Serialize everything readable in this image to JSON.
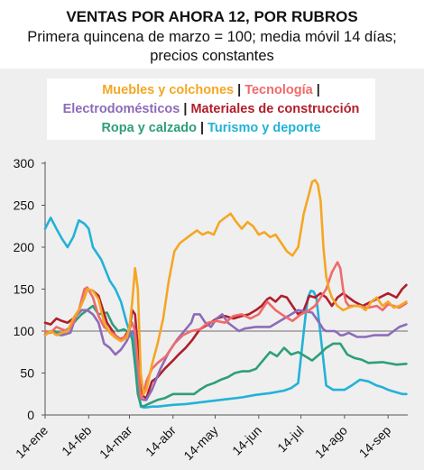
{
  "title": "VENTAS POR AHORA 12, POR RUBROS",
  "subtitle_line1": "Primera quincena de marzo = 100; media móvil 14 días;",
  "subtitle_line2": "precios constantes",
  "legend": {
    "separator": " | ",
    "entries": [
      {
        "name": "Muebles y colchones",
        "color": "#F5A623"
      },
      {
        "name": "Tecnología",
        "color": "#F06A6A"
      },
      {
        "name": "Electrodomésticos",
        "color": "#8E6BB8"
      },
      {
        "name": "Materiales de construcción",
        "color": "#B01E2A"
      },
      {
        "name": "Ropa y calzado",
        "color": "#2E9E7A"
      },
      {
        "name": "Turismo y deporte",
        "color": "#22B2D8"
      }
    ]
  },
  "chart_data": {
    "type": "line",
    "title": "VENTAS POR AHORA 12, POR RUBROS",
    "ylim": [
      0,
      300
    ],
    "yticks": [
      0,
      50,
      100,
      150,
      200,
      250,
      300
    ],
    "reference_line": 100,
    "x_range_days": [
      0,
      258
    ],
    "x_ticks": [
      {
        "day": 0,
        "label": "14-ene"
      },
      {
        "day": 31,
        "label": "14-feb"
      },
      {
        "day": 60,
        "label": "14-mar"
      },
      {
        "day": 91,
        "label": "14-abr"
      },
      {
        "day": 121,
        "label": "14-may"
      },
      {
        "day": 152,
        "label": "14-jun"
      },
      {
        "day": 182,
        "label": "14-jul"
      },
      {
        "day": 213,
        "label": "14-ago"
      },
      {
        "day": 244,
        "label": "14-sep"
      }
    ],
    "series": [
      {
        "name": "Turismo y deporte",
        "color": "#22B2D8",
        "x": [
          0,
          4,
          8,
          12,
          16,
          20,
          24,
          28,
          31,
          34,
          40,
          46,
          50,
          54,
          58,
          60,
          62,
          64,
          66,
          68,
          70,
          72,
          76,
          80,
          85,
          91,
          100,
          110,
          120,
          130,
          140,
          150,
          160,
          170,
          175,
          180,
          185,
          187,
          189,
          191,
          193,
          196,
          200,
          205,
          210,
          213,
          218,
          224,
          230,
          236,
          240,
          244,
          248,
          254,
          257
        ],
        "y": [
          222,
          235,
          222,
          210,
          200,
          212,
          232,
          228,
          222,
          200,
          185,
          160,
          150,
          135,
          110,
          100,
          98,
          85,
          45,
          10,
          9,
          9,
          10,
          10,
          11,
          12,
          13,
          15,
          17,
          19,
          21,
          24,
          26,
          29,
          32,
          38,
          115,
          140,
          148,
          147,
          140,
          95,
          35,
          30,
          30,
          30,
          35,
          42,
          40,
          35,
          33,
          30,
          28,
          25,
          25
        ]
      },
      {
        "name": "Ropa y calzado",
        "color": "#2E9E7A",
        "x": [
          0,
          6,
          12,
          18,
          22,
          26,
          30,
          34,
          38,
          44,
          48,
          52,
          56,
          58,
          60,
          62,
          64,
          66,
          68,
          70,
          72,
          76,
          80,
          85,
          91,
          95,
          100,
          106,
          110,
          115,
          120,
          125,
          130,
          135,
          140,
          145,
          150,
          155,
          160,
          165,
          170,
          175,
          180,
          185,
          190,
          195,
          200,
          205,
          210,
          215,
          220,
          225,
          230,
          240,
          250,
          257
        ],
        "y": [
          96,
          100,
          97,
          105,
          113,
          120,
          125,
          130,
          120,
          122,
          108,
          100,
          102,
          100,
          100,
          90,
          60,
          25,
          12,
          10,
          12,
          15,
          18,
          20,
          25,
          25,
          25,
          25,
          30,
          35,
          38,
          42,
          45,
          50,
          52,
          52,
          55,
          65,
          75,
          70,
          80,
          72,
          75,
          70,
          65,
          72,
          80,
          85,
          85,
          72,
          68,
          66,
          62,
          63,
          60,
          61
        ]
      },
      {
        "name": "Materiales de construcción",
        "color": "#B01E2A",
        "x": [
          0,
          4,
          8,
          12,
          16,
          20,
          24,
          28,
          30,
          34,
          38,
          44,
          48,
          52,
          56,
          60,
          62,
          64,
          66,
          68,
          70,
          72,
          76,
          80,
          85,
          91,
          95,
          100,
          105,
          110,
          116,
          122,
          128,
          134,
          140,
          145,
          150,
          154,
          158,
          160,
          164,
          168,
          172,
          176,
          180,
          184,
          188,
          192,
          196,
          200,
          204,
          208,
          212,
          216,
          220,
          226,
          232,
          238,
          244,
          250,
          254,
          257
        ],
        "y": [
          110,
          108,
          115,
          112,
          110,
          115,
          125,
          140,
          150,
          148,
          142,
          110,
          100,
          90,
          92,
          102,
          125,
          120,
          80,
          35,
          22,
          20,
          40,
          45,
          55,
          65,
          72,
          80,
          90,
          102,
          108,
          115,
          118,
          115,
          118,
          120,
          125,
          130,
          138,
          140,
          135,
          142,
          140,
          130,
          120,
          125,
          142,
          140,
          145,
          140,
          130,
          140,
          145,
          140,
          135,
          130,
          135,
          140,
          145,
          140,
          150,
          155
        ]
      },
      {
        "name": "Electrodomésticos",
        "color": "#8E6BB8",
        "x": [
          0,
          4,
          8,
          12,
          18,
          22,
          26,
          30,
          34,
          38,
          42,
          46,
          50,
          54,
          58,
          60,
          62,
          64,
          66,
          68,
          70,
          72,
          76,
          82,
          88,
          94,
          100,
          104,
          106,
          110,
          114,
          118,
          122,
          126,
          130,
          134,
          138,
          142,
          146,
          150,
          160,
          170,
          180,
          190,
          195,
          198,
          200,
          202,
          204,
          206,
          208,
          210,
          212,
          216,
          222,
          228,
          234,
          240,
          244,
          248,
          252,
          257
        ],
        "y": [
          95,
          100,
          96,
          95,
          98,
          118,
          125,
          125,
          120,
          110,
          85,
          80,
          72,
          78,
          88,
          95,
          100,
          95,
          60,
          20,
          18,
          18,
          30,
          55,
          75,
          90,
          102,
          110,
          120,
          120,
          110,
          105,
          115,
          120,
          110,
          105,
          100,
          103,
          104,
          105,
          105,
          115,
          125,
          122,
          110,
          102,
          100,
          100,
          100,
          100,
          98,
          95,
          95,
          98,
          93,
          93,
          95,
          95,
          95,
          100,
          105,
          108
        ]
      },
      {
        "name": "Tecnología",
        "color": "#F06A6A",
        "x": [
          0,
          4,
          8,
          12,
          16,
          20,
          24,
          28,
          30,
          34,
          38,
          42,
          46,
          50,
          54,
          58,
          60,
          62,
          64,
          66,
          68,
          70,
          72,
          76,
          80,
          86,
          92,
          98,
          104,
          110,
          116,
          122,
          128,
          134,
          140,
          146,
          152,
          158,
          164,
          170,
          176,
          182,
          188,
          192,
          196,
          200,
          204,
          208,
          210,
          212,
          214,
          216,
          222,
          230,
          236,
          240,
          244,
          248,
          252,
          257
        ],
        "y": [
          100,
          98,
          105,
          102,
          100,
          110,
          125,
          150,
          152,
          140,
          118,
          105,
          100,
          95,
          90,
          95,
          102,
          110,
          100,
          60,
          20,
          25,
          40,
          55,
          62,
          70,
          85,
          95,
          100,
          102,
          110,
          112,
          110,
          118,
          120,
          115,
          120,
          135,
          125,
          118,
          112,
          120,
          125,
          130,
          140,
          150,
          170,
          182,
          175,
          150,
          135,
          130,
          130,
          128,
          130,
          125,
          132,
          130,
          128,
          133
        ]
      },
      {
        "name": "Muebles y colchones",
        "color": "#F5A623",
        "x": [
          0,
          4,
          8,
          12,
          16,
          20,
          24,
          28,
          30,
          34,
          38,
          42,
          46,
          50,
          54,
          58,
          60,
          62,
          64,
          66,
          68,
          70,
          72,
          76,
          80,
          84,
          88,
          92,
          96,
          100,
          104,
          108,
          112,
          116,
          120,
          124,
          128,
          132,
          136,
          140,
          144,
          148,
          152,
          156,
          160,
          164,
          168,
          172,
          176,
          180,
          184,
          188,
          190,
          192,
          194,
          196,
          198,
          200,
          202,
          204,
          208,
          212,
          216,
          220,
          224,
          228,
          232,
          236,
          240,
          244,
          248,
          252,
          257
        ],
        "y": [
          95,
          100,
          95,
          98,
          100,
          115,
          125,
          140,
          150,
          148,
          138,
          110,
          98,
          92,
          88,
          92,
          105,
          135,
          175,
          150,
          50,
          25,
          30,
          60,
          85,
          115,
          160,
          195,
          205,
          210,
          215,
          220,
          215,
          218,
          215,
          230,
          235,
          240,
          230,
          222,
          230,
          225,
          215,
          218,
          212,
          215,
          205,
          195,
          190,
          200,
          240,
          265,
          278,
          280,
          275,
          255,
          200,
          165,
          150,
          140,
          130,
          125,
          128,
          130,
          130,
          125,
          135,
          140,
          130,
          135,
          128,
          130,
          135
        ]
      }
    ]
  }
}
